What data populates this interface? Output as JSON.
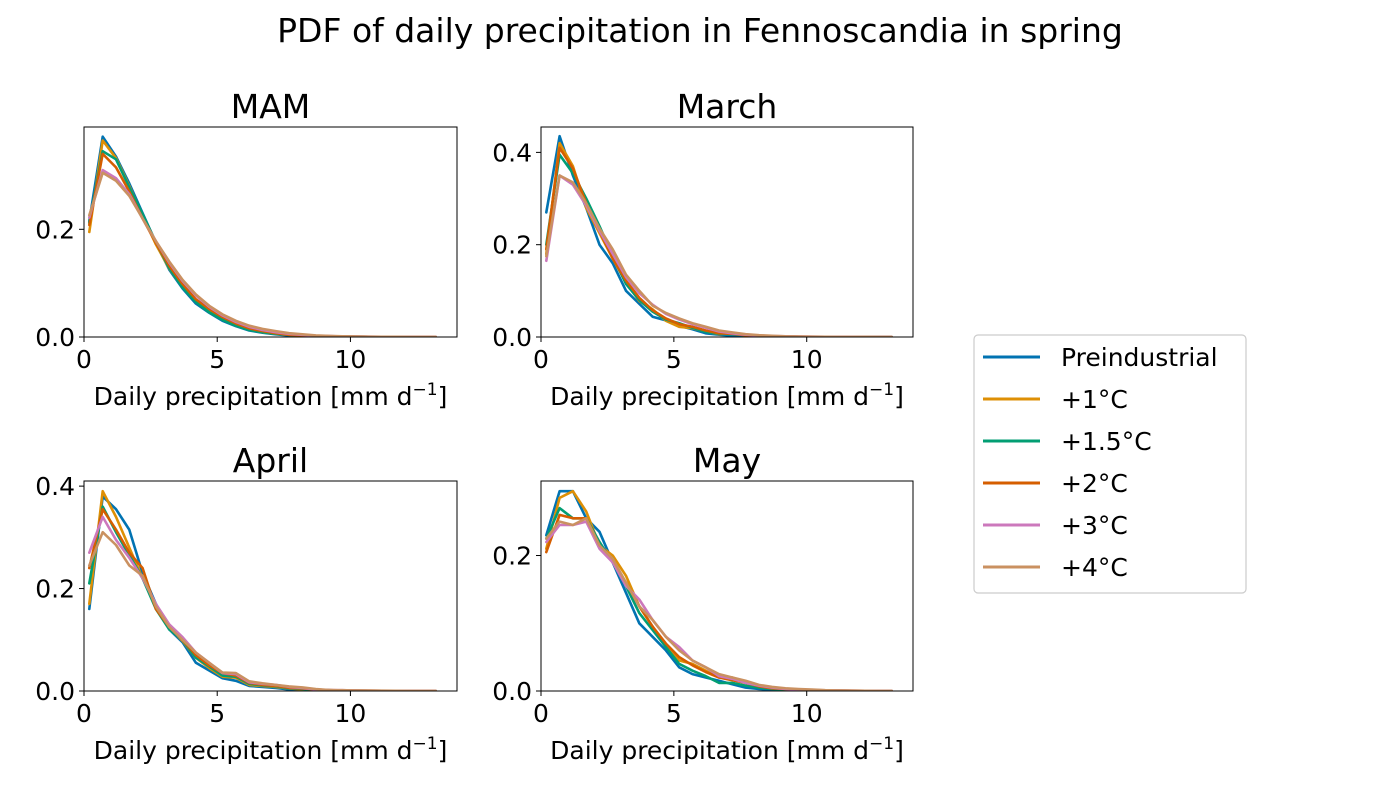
{
  "figure": {
    "title": "PDF of daily precipitation in Fennoscandia in spring"
  },
  "legend": {
    "placement": "right-center",
    "items": [
      {
        "label": "Preindustrial",
        "color": "#0173b2"
      },
      {
        "label": "+1°C",
        "color": "#de8f05"
      },
      {
        "label": "+1.5°C",
        "color": "#029e73"
      },
      {
        "label": "+2°C",
        "color": "#d55e00"
      },
      {
        "label": "+3°C",
        "color": "#cc78bc"
      },
      {
        "label": "+4°C",
        "color": "#ca9161"
      }
    ]
  },
  "chart_data": [
    {
      "type": "line",
      "title": "MAM",
      "xlabel": "Daily precipitation [mm d",
      "xlabel_sup": "−1",
      "xlabel_end": "]",
      "xlim": [
        0,
        14
      ],
      "ylim": [
        0,
        0.39
      ],
      "xticks": [
        0,
        5,
        10
      ],
      "xtick_labels": [
        "0",
        "5",
        "10"
      ],
      "yticks": [
        0.0,
        0.2
      ],
      "ytick_labels": [
        "0.0",
        "0.2"
      ],
      "x": [
        0.2,
        0.7,
        1.2,
        1.7,
        2.2,
        2.7,
        3.2,
        3.7,
        4.2,
        4.7,
        5.2,
        5.7,
        6.2,
        6.7,
        7.2,
        7.7,
        8.2,
        8.7,
        9.2,
        9.7,
        10.2,
        10.7,
        11.2,
        11.7,
        12.2,
        12.7,
        13.2
      ],
      "series": [
        {
          "name": "Preindustrial",
          "color": "#0173b2",
          "values": [
            0.215,
            0.372,
            0.335,
            0.285,
            0.23,
            0.175,
            0.125,
            0.09,
            0.062,
            0.045,
            0.03,
            0.02,
            0.012,
            0.008,
            0.005,
            0.003,
            0.002,
            0.001,
            0.001,
            0.0005,
            0.0004,
            0.0003,
            0.0002,
            0.0002,
            0.0001,
            0.0001,
            0.0001
          ]
        },
        {
          "name": "+1°C",
          "color": "#de8f05",
          "values": [
            0.195,
            0.365,
            0.332,
            0.28,
            0.225,
            0.172,
            0.127,
            0.093,
            0.066,
            0.048,
            0.033,
            0.022,
            0.014,
            0.009,
            0.006,
            0.004,
            0.002,
            0.0015,
            0.001,
            0.0007,
            0.0005,
            0.0003,
            0.0002,
            0.0002,
            0.0001,
            0.0001,
            0.0001
          ]
        },
        {
          "name": "+1.5°C",
          "color": "#029e73",
          "values": [
            0.212,
            0.345,
            0.33,
            0.278,
            0.228,
            0.176,
            0.128,
            0.092,
            0.065,
            0.046,
            0.032,
            0.021,
            0.013,
            0.009,
            0.006,
            0.004,
            0.002,
            0.0015,
            0.001,
            0.0007,
            0.0005,
            0.0003,
            0.0002,
            0.0002,
            0.0001,
            0.0001,
            0.0001
          ]
        },
        {
          "name": "+2°C",
          "color": "#d55e00",
          "values": [
            0.208,
            0.34,
            0.315,
            0.27,
            0.22,
            0.175,
            0.132,
            0.098,
            0.07,
            0.052,
            0.037,
            0.025,
            0.016,
            0.011,
            0.007,
            0.004,
            0.003,
            0.002,
            0.0013,
            0.0009,
            0.0006,
            0.0004,
            0.0003,
            0.0002,
            0.0002,
            0.0001,
            0.0001
          ]
        },
        {
          "name": "+3°C",
          "color": "#cc78bc",
          "values": [
            0.222,
            0.31,
            0.295,
            0.265,
            0.22,
            0.178,
            0.138,
            0.104,
            0.077,
            0.056,
            0.04,
            0.028,
            0.019,
            0.013,
            0.009,
            0.006,
            0.004,
            0.0025,
            0.0016,
            0.001,
            0.0007,
            0.0005,
            0.0003,
            0.0002,
            0.0002,
            0.0001,
            0.0001
          ]
        },
        {
          "name": "+4°C",
          "color": "#ca9161",
          "values": [
            0.226,
            0.305,
            0.29,
            0.262,
            0.22,
            0.178,
            0.14,
            0.106,
            0.079,
            0.058,
            0.042,
            0.03,
            0.021,
            0.015,
            0.011,
            0.007,
            0.005,
            0.003,
            0.002,
            0.0013,
            0.0009,
            0.0006,
            0.0004,
            0.0003,
            0.0002,
            0.0002,
            0.0001
          ]
        }
      ]
    },
    {
      "type": "line",
      "title": "March",
      "xlabel": "Daily precipitation [mm d",
      "xlabel_sup": "−1",
      "xlabel_end": "]",
      "xlim": [
        0,
        14
      ],
      "ylim": [
        0,
        0.455
      ],
      "xticks": [
        0,
        5,
        10
      ],
      "xtick_labels": [
        "0",
        "5",
        "10"
      ],
      "yticks": [
        0.0,
        0.2,
        0.4
      ],
      "ytick_labels": [
        "0.0",
        "0.2",
        "0.4"
      ],
      "x": [
        0.2,
        0.7,
        1.2,
        1.7,
        2.2,
        2.7,
        3.2,
        3.7,
        4.2,
        4.7,
        5.2,
        5.7,
        6.2,
        6.7,
        7.2,
        7.7,
        8.2,
        8.7,
        9.2,
        9.7,
        10.2,
        10.7,
        11.2,
        11.7,
        12.2,
        12.7,
        13.2
      ],
      "series": [
        {
          "name": "Preindustrial",
          "color": "#0173b2",
          "values": [
            0.27,
            0.435,
            0.35,
            0.28,
            0.2,
            0.16,
            0.1,
            0.072,
            0.044,
            0.036,
            0.024,
            0.017,
            0.008,
            0.005,
            0.003,
            0.002,
            0.001,
            0.001,
            0.0005,
            0.0005,
            0.0003,
            0.0002,
            0.0002,
            0.0001,
            0.0001,
            0.0001,
            0.0001
          ]
        },
        {
          "name": "+1°C",
          "color": "#de8f05",
          "values": [
            0.18,
            0.42,
            0.37,
            0.28,
            0.225,
            0.17,
            0.118,
            0.078,
            0.06,
            0.035,
            0.022,
            0.019,
            0.012,
            0.006,
            0.009,
            0.004,
            0.002,
            0.001,
            0.001,
            0.0005,
            0.0004,
            0.0003,
            0.0002,
            0.0001,
            0.0001,
            0.0001,
            0.0001
          ]
        },
        {
          "name": "+1.5°C",
          "color": "#029e73",
          "values": [
            0.2,
            0.395,
            0.355,
            0.3,
            0.24,
            0.175,
            0.115,
            0.08,
            0.055,
            0.038,
            0.03,
            0.02,
            0.011,
            0.007,
            0.006,
            0.004,
            0.002,
            0.001,
            0.001,
            0.0005,
            0.0004,
            0.0003,
            0.0002,
            0.0001,
            0.0001,
            0.0001,
            0.0001
          ]
        },
        {
          "name": "+2°C",
          "color": "#d55e00",
          "values": [
            0.19,
            0.41,
            0.365,
            0.29,
            0.23,
            0.17,
            0.122,
            0.085,
            0.058,
            0.04,
            0.028,
            0.022,
            0.014,
            0.008,
            0.007,
            0.004,
            0.002,
            0.0015,
            0.001,
            0.0006,
            0.0004,
            0.0003,
            0.0002,
            0.0001,
            0.0001,
            0.0001,
            0.0001
          ]
        },
        {
          "name": "+3°C",
          "color": "#cc78bc",
          "values": [
            0.165,
            0.35,
            0.33,
            0.285,
            0.23,
            0.18,
            0.13,
            0.095,
            0.07,
            0.05,
            0.038,
            0.028,
            0.02,
            0.012,
            0.008,
            0.005,
            0.003,
            0.002,
            0.0015,
            0.001,
            0.0006,
            0.0004,
            0.0003,
            0.0002,
            0.0001,
            0.0001,
            0.0001
          ]
        },
        {
          "name": "+4°C",
          "color": "#ca9161",
          "values": [
            0.175,
            0.35,
            0.335,
            0.29,
            0.235,
            0.19,
            0.135,
            0.1,
            0.068,
            0.052,
            0.04,
            0.03,
            0.022,
            0.014,
            0.01,
            0.006,
            0.004,
            0.0025,
            0.0015,
            0.001,
            0.0007,
            0.0005,
            0.0003,
            0.0002,
            0.0002,
            0.0001,
            0.0001
          ]
        }
      ]
    },
    {
      "type": "line",
      "title": "April",
      "xlabel": "Daily precipitation [mm d",
      "xlabel_sup": "−1",
      "xlabel_end": "]",
      "xlim": [
        0,
        14
      ],
      "ylim": [
        0,
        0.41
      ],
      "xticks": [
        0,
        5,
        10
      ],
      "xtick_labels": [
        "0",
        "5",
        "10"
      ],
      "yticks": [
        0.0,
        0.2,
        0.4
      ],
      "ytick_labels": [
        "0.0",
        "0.2",
        "0.4"
      ],
      "x": [
        0.2,
        0.7,
        1.2,
        1.7,
        2.2,
        2.7,
        3.2,
        3.7,
        4.2,
        4.7,
        5.2,
        5.7,
        6.2,
        6.7,
        7.2,
        7.7,
        8.2,
        8.7,
        9.2,
        9.7,
        10.2,
        10.7,
        11.2,
        11.7,
        12.2,
        12.7,
        13.2
      ],
      "series": [
        {
          "name": "Preindustrial",
          "color": "#0173b2",
          "values": [
            0.16,
            0.38,
            0.355,
            0.315,
            0.23,
            0.17,
            0.12,
            0.095,
            0.055,
            0.04,
            0.025,
            0.02,
            0.01,
            0.008,
            0.006,
            0.003,
            0.002,
            0.001,
            0.001,
            0.0005,
            0.0004,
            0.0003,
            0.0002,
            0.0001,
            0.0001,
            0.0001,
            0.0001
          ]
        },
        {
          "name": "+1°C",
          "color": "#de8f05",
          "values": [
            0.17,
            0.39,
            0.34,
            0.28,
            0.22,
            0.165,
            0.122,
            0.098,
            0.065,
            0.045,
            0.028,
            0.026,
            0.012,
            0.01,
            0.008,
            0.005,
            0.003,
            0.002,
            0.001,
            0.0007,
            0.0005,
            0.0003,
            0.0002,
            0.0002,
            0.0001,
            0.0001,
            0.0001
          ]
        },
        {
          "name": "+1.5°C",
          "color": "#029e73",
          "values": [
            0.21,
            0.36,
            0.31,
            0.265,
            0.22,
            0.16,
            0.12,
            0.1,
            0.065,
            0.048,
            0.03,
            0.028,
            0.014,
            0.011,
            0.009,
            0.005,
            0.004,
            0.002,
            0.0015,
            0.001,
            0.0006,
            0.0004,
            0.0003,
            0.0002,
            0.0001,
            0.0001,
            0.0001
          ]
        },
        {
          "name": "+2°C",
          "color": "#d55e00",
          "values": [
            0.24,
            0.355,
            0.315,
            0.27,
            0.24,
            0.16,
            0.125,
            0.1,
            0.07,
            0.05,
            0.035,
            0.03,
            0.016,
            0.012,
            0.01,
            0.006,
            0.005,
            0.003,
            0.002,
            0.0012,
            0.0008,
            0.0005,
            0.0003,
            0.0002,
            0.0002,
            0.0001,
            0.0001
          ]
        },
        {
          "name": "+3°C",
          "color": "#cc78bc",
          "values": [
            0.27,
            0.34,
            0.295,
            0.26,
            0.22,
            0.17,
            0.13,
            0.105,
            0.075,
            0.055,
            0.035,
            0.033,
            0.017,
            0.014,
            0.012,
            0.008,
            0.006,
            0.003,
            0.002,
            0.0015,
            0.001,
            0.0006,
            0.0004,
            0.0003,
            0.0002,
            0.0001,
            0.0001
          ]
        },
        {
          "name": "+4°C",
          "color": "#ca9161",
          "values": [
            0.245,
            0.31,
            0.285,
            0.245,
            0.225,
            0.165,
            0.125,
            0.1,
            0.075,
            0.055,
            0.036,
            0.035,
            0.019,
            0.015,
            0.012,
            0.009,
            0.007,
            0.004,
            0.002,
            0.0015,
            0.001,
            0.0007,
            0.0005,
            0.0003,
            0.0002,
            0.0002,
            0.0001
          ]
        }
      ]
    },
    {
      "type": "line",
      "title": "May",
      "xlabel": "Daily precipitation [mm d",
      "xlabel_sup": "−1",
      "xlabel_end": "]",
      "xlim": [
        0,
        14
      ],
      "ylim": [
        0,
        0.31
      ],
      "xticks": [
        0,
        5,
        10
      ],
      "xtick_labels": [
        "0",
        "5",
        "10"
      ],
      "yticks": [
        0.0,
        0.2
      ],
      "ytick_labels": [
        "0.0",
        "0.2"
      ],
      "x": [
        0.2,
        0.7,
        1.2,
        1.7,
        2.2,
        2.7,
        3.2,
        3.7,
        4.2,
        4.7,
        5.2,
        5.7,
        6.2,
        6.7,
        7.2,
        7.7,
        8.2,
        8.7,
        9.2,
        9.7,
        10.2,
        10.7,
        11.2,
        11.7,
        12.2,
        12.7,
        13.2
      ],
      "series": [
        {
          "name": "Preindustrial",
          "color": "#0173b2",
          "values": [
            0.23,
            0.295,
            0.295,
            0.255,
            0.235,
            0.19,
            0.145,
            0.1,
            0.08,
            0.06,
            0.035,
            0.025,
            0.02,
            0.015,
            0.01,
            0.005,
            0.003,
            0.002,
            0.001,
            0.0007,
            0.0005,
            0.0003,
            0.0002,
            0.0002,
            0.0001,
            0.0001,
            0.0001
          ]
        },
        {
          "name": "+1°C",
          "color": "#de8f05",
          "values": [
            0.21,
            0.285,
            0.295,
            0.265,
            0.215,
            0.2,
            0.17,
            0.125,
            0.095,
            0.065,
            0.045,
            0.04,
            0.03,
            0.02,
            0.02,
            0.012,
            0.008,
            0.004,
            0.003,
            0.002,
            0.0012,
            0.0008,
            0.0005,
            0.0003,
            0.0002,
            0.0001,
            0.0001
          ]
        },
        {
          "name": "+1.5°C",
          "color": "#029e73",
          "values": [
            0.225,
            0.27,
            0.255,
            0.255,
            0.22,
            0.19,
            0.155,
            0.115,
            0.09,
            0.065,
            0.04,
            0.03,
            0.022,
            0.012,
            0.012,
            0.008,
            0.005,
            0.003,
            0.002,
            0.0013,
            0.0009,
            0.0006,
            0.0004,
            0.0003,
            0.0002,
            0.0001,
            0.0001
          ]
        },
        {
          "name": "+2°C",
          "color": "#d55e00",
          "values": [
            0.205,
            0.26,
            0.255,
            0.255,
            0.215,
            0.19,
            0.16,
            0.125,
            0.095,
            0.07,
            0.05,
            0.038,
            0.028,
            0.02,
            0.016,
            0.012,
            0.007,
            0.004,
            0.003,
            0.002,
            0.0013,
            0.0009,
            0.0006,
            0.0004,
            0.0003,
            0.0002,
            0.0001
          ]
        },
        {
          "name": "+3°C",
          "color": "#cc78bc",
          "values": [
            0.22,
            0.245,
            0.245,
            0.25,
            0.21,
            0.19,
            0.155,
            0.135,
            0.105,
            0.08,
            0.065,
            0.045,
            0.035,
            0.022,
            0.018,
            0.012,
            0.008,
            0.005,
            0.003,
            0.002,
            0.0015,
            0.001,
            0.0006,
            0.0004,
            0.0003,
            0.0002,
            0.0001
          ]
        },
        {
          "name": "+4°C",
          "color": "#ca9161",
          "values": [
            0.225,
            0.25,
            0.245,
            0.255,
            0.215,
            0.195,
            0.16,
            0.125,
            0.105,
            0.08,
            0.06,
            0.045,
            0.035,
            0.025,
            0.02,
            0.015,
            0.009,
            0.006,
            0.004,
            0.003,
            0.002,
            0.0012,
            0.0008,
            0.0005,
            0.0003,
            0.0002,
            0.0001
          ]
        }
      ]
    }
  ]
}
